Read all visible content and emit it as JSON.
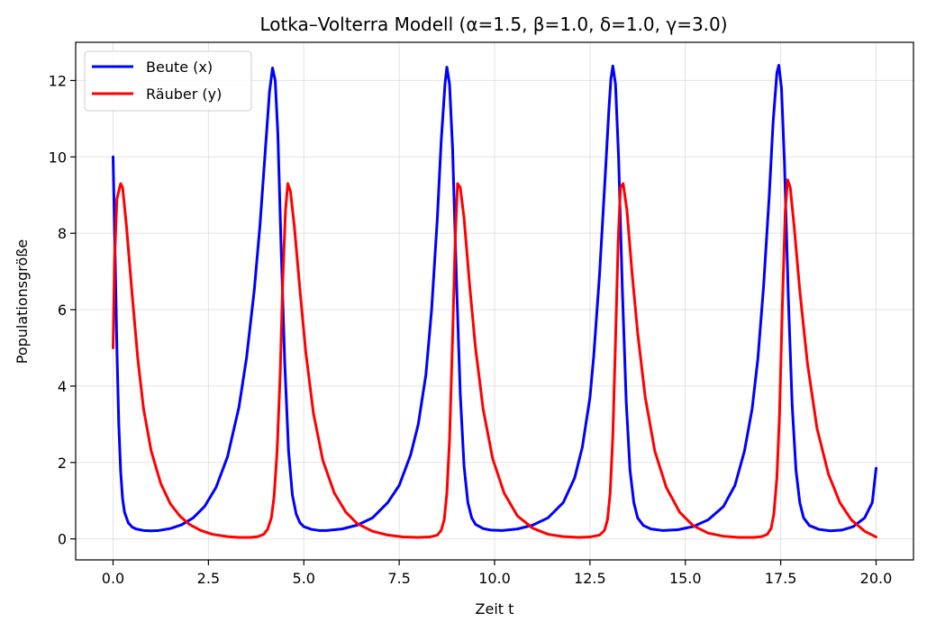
{
  "chart_data": {
    "type": "line",
    "title": "Lotka–Volterra Modell (α=1.5, β=1.0, δ=1.0, γ=3.0)",
    "xlabel": "Zeit t",
    "ylabel": "Populationsgröße",
    "xlim": [
      -0.98,
      20.98
    ],
    "ylim": [
      -0.55,
      13.0
    ],
    "xticks": [
      0.0,
      2.5,
      5.0,
      7.5,
      10.0,
      12.5,
      15.0,
      17.5,
      20.0
    ],
    "xtick_labels": [
      "0.0",
      "2.5",
      "5.0",
      "7.5",
      "10.0",
      "12.5",
      "15.0",
      "17.5",
      "20.0"
    ],
    "yticks": [
      0,
      2,
      4,
      6,
      8,
      10,
      12
    ],
    "ytick_labels": [
      "0",
      "2",
      "4",
      "6",
      "8",
      "10",
      "12"
    ],
    "grid": true,
    "legend_position": "top-left",
    "series": [
      {
        "name": "Beute (x)",
        "color": "#0000ff",
        "points": [
          [
            0.0,
            10.0
          ],
          [
            0.05,
            7.6
          ],
          [
            0.1,
            5.0
          ],
          [
            0.15,
            3.0
          ],
          [
            0.2,
            1.75
          ],
          [
            0.25,
            1.05
          ],
          [
            0.3,
            0.7
          ],
          [
            0.4,
            0.42
          ],
          [
            0.5,
            0.31
          ],
          [
            0.6,
            0.26
          ],
          [
            0.8,
            0.22
          ],
          [
            1.0,
            0.21
          ],
          [
            1.2,
            0.22
          ],
          [
            1.5,
            0.27
          ],
          [
            1.8,
            0.37
          ],
          [
            2.1,
            0.55
          ],
          [
            2.4,
            0.85
          ],
          [
            2.7,
            1.35
          ],
          [
            3.0,
            2.15
          ],
          [
            3.3,
            3.45
          ],
          [
            3.5,
            4.75
          ],
          [
            3.7,
            6.5
          ],
          [
            3.85,
            8.2
          ],
          [
            4.0,
            10.3
          ],
          [
            4.1,
            11.7
          ],
          [
            4.18,
            12.33
          ],
          [
            4.25,
            12.0
          ],
          [
            4.32,
            10.6
          ],
          [
            4.4,
            7.8
          ],
          [
            4.5,
            4.6
          ],
          [
            4.6,
            2.3
          ],
          [
            4.7,
            1.15
          ],
          [
            4.8,
            0.65
          ],
          [
            4.9,
            0.42
          ],
          [
            5.0,
            0.32
          ],
          [
            5.2,
            0.25
          ],
          [
            5.4,
            0.22
          ],
          [
            5.6,
            0.22
          ],
          [
            6.0,
            0.26
          ],
          [
            6.4,
            0.36
          ],
          [
            6.8,
            0.55
          ],
          [
            7.2,
            0.95
          ],
          [
            7.5,
            1.4
          ],
          [
            7.8,
            2.2
          ],
          [
            8.0,
            3.0
          ],
          [
            8.2,
            4.3
          ],
          [
            8.35,
            6.0
          ],
          [
            8.5,
            8.4
          ],
          [
            8.6,
            10.4
          ],
          [
            8.7,
            11.9
          ],
          [
            8.75,
            12.35
          ],
          [
            8.82,
            11.9
          ],
          [
            8.9,
            10.2
          ],
          [
            9.0,
            6.8
          ],
          [
            9.1,
            3.8
          ],
          [
            9.2,
            1.9
          ],
          [
            9.3,
            0.95
          ],
          [
            9.4,
            0.55
          ],
          [
            9.5,
            0.38
          ],
          [
            9.7,
            0.27
          ],
          [
            9.9,
            0.23
          ],
          [
            10.2,
            0.22
          ],
          [
            10.6,
            0.26
          ],
          [
            11.0,
            0.36
          ],
          [
            11.4,
            0.55
          ],
          [
            11.8,
            0.95
          ],
          [
            12.1,
            1.6
          ],
          [
            12.3,
            2.4
          ],
          [
            12.5,
            3.7
          ],
          [
            12.6,
            4.8
          ],
          [
            12.75,
            6.9
          ],
          [
            12.9,
            9.5
          ],
          [
            13.0,
            11.3
          ],
          [
            13.05,
            12.05
          ],
          [
            13.1,
            12.38
          ],
          [
            13.17,
            11.9
          ],
          [
            13.25,
            10.0
          ],
          [
            13.35,
            6.5
          ],
          [
            13.45,
            3.6
          ],
          [
            13.55,
            1.8
          ],
          [
            13.65,
            0.95
          ],
          [
            13.75,
            0.55
          ],
          [
            13.9,
            0.35
          ],
          [
            14.1,
            0.26
          ],
          [
            14.4,
            0.22
          ],
          [
            14.8,
            0.24
          ],
          [
            15.2,
            0.32
          ],
          [
            15.6,
            0.5
          ],
          [
            16.0,
            0.85
          ],
          [
            16.3,
            1.4
          ],
          [
            16.55,
            2.3
          ],
          [
            16.75,
            3.4
          ],
          [
            16.9,
            4.7
          ],
          [
            17.05,
            6.6
          ],
          [
            17.2,
            9.0
          ],
          [
            17.3,
            10.9
          ],
          [
            17.4,
            12.2
          ],
          [
            17.45,
            12.4
          ],
          [
            17.52,
            11.8
          ],
          [
            17.6,
            9.8
          ],
          [
            17.7,
            6.3
          ],
          [
            17.8,
            3.5
          ],
          [
            17.9,
            1.8
          ],
          [
            18.0,
            0.95
          ],
          [
            18.1,
            0.55
          ],
          [
            18.25,
            0.35
          ],
          [
            18.5,
            0.25
          ],
          [
            18.8,
            0.21
          ],
          [
            19.1,
            0.23
          ],
          [
            19.4,
            0.32
          ],
          [
            19.7,
            0.55
          ],
          [
            19.9,
            0.95
          ],
          [
            20.0,
            1.85
          ]
        ]
      },
      {
        "name": "Räuber (y)",
        "color": "#ff0000",
        "points": [
          [
            0.0,
            5.0
          ],
          [
            0.04,
            7.3
          ],
          [
            0.1,
            8.9
          ],
          [
            0.2,
            9.3
          ],
          [
            0.25,
            9.2
          ],
          [
            0.35,
            8.2
          ],
          [
            0.5,
            6.4
          ],
          [
            0.65,
            4.7
          ],
          [
            0.8,
            3.4
          ],
          [
            1.0,
            2.3
          ],
          [
            1.25,
            1.45
          ],
          [
            1.5,
            0.92
          ],
          [
            1.75,
            0.6
          ],
          [
            2.0,
            0.38
          ],
          [
            2.3,
            0.22
          ],
          [
            2.6,
            0.12
          ],
          [
            3.0,
            0.06
          ],
          [
            3.3,
            0.04
          ],
          [
            3.6,
            0.04
          ],
          [
            3.8,
            0.06
          ],
          [
            3.95,
            0.12
          ],
          [
            4.05,
            0.25
          ],
          [
            4.15,
            0.55
          ],
          [
            4.22,
            1.1
          ],
          [
            4.3,
            2.3
          ],
          [
            4.38,
            4.3
          ],
          [
            4.45,
            6.8
          ],
          [
            4.52,
            8.6
          ],
          [
            4.58,
            9.3
          ],
          [
            4.65,
            9.1
          ],
          [
            4.75,
            8.2
          ],
          [
            4.9,
            6.5
          ],
          [
            5.05,
            4.9
          ],
          [
            5.25,
            3.3
          ],
          [
            5.5,
            2.05
          ],
          [
            5.8,
            1.2
          ],
          [
            6.1,
            0.7
          ],
          [
            6.4,
            0.4
          ],
          [
            6.8,
            0.2
          ],
          [
            7.2,
            0.1
          ],
          [
            7.6,
            0.05
          ],
          [
            8.0,
            0.04
          ],
          [
            8.3,
            0.05
          ],
          [
            8.5,
            0.1
          ],
          [
            8.6,
            0.22
          ],
          [
            8.68,
            0.5
          ],
          [
            8.75,
            1.2
          ],
          [
            8.82,
            2.6
          ],
          [
            8.9,
            5.3
          ],
          [
            8.97,
            7.9
          ],
          [
            9.03,
            9.3
          ],
          [
            9.1,
            9.2
          ],
          [
            9.2,
            8.4
          ],
          [
            9.35,
            6.6
          ],
          [
            9.5,
            5.0
          ],
          [
            9.7,
            3.4
          ],
          [
            9.95,
            2.1
          ],
          [
            10.25,
            1.2
          ],
          [
            10.6,
            0.6
          ],
          [
            11.0,
            0.28
          ],
          [
            11.4,
            0.12
          ],
          [
            11.8,
            0.06
          ],
          [
            12.2,
            0.04
          ],
          [
            12.5,
            0.05
          ],
          [
            12.75,
            0.1
          ],
          [
            12.88,
            0.22
          ],
          [
            12.96,
            0.5
          ],
          [
            13.03,
            1.2
          ],
          [
            13.1,
            2.7
          ],
          [
            13.17,
            5.2
          ],
          [
            13.24,
            7.8
          ],
          [
            13.3,
            9.2
          ],
          [
            13.37,
            9.3
          ],
          [
            13.47,
            8.6
          ],
          [
            13.6,
            7.0
          ],
          [
            13.75,
            5.4
          ],
          [
            13.95,
            3.7
          ],
          [
            14.2,
            2.3
          ],
          [
            14.5,
            1.35
          ],
          [
            14.85,
            0.7
          ],
          [
            15.2,
            0.35
          ],
          [
            15.6,
            0.15
          ],
          [
            16.0,
            0.07
          ],
          [
            16.4,
            0.04
          ],
          [
            16.8,
            0.04
          ],
          [
            17.0,
            0.06
          ],
          [
            17.15,
            0.12
          ],
          [
            17.25,
            0.28
          ],
          [
            17.32,
            0.65
          ],
          [
            17.4,
            1.6
          ],
          [
            17.47,
            3.3
          ],
          [
            17.54,
            6.0
          ],
          [
            17.62,
            8.6
          ],
          [
            17.68,
            9.4
          ],
          [
            17.75,
            9.2
          ],
          [
            17.85,
            8.2
          ],
          [
            18.0,
            6.5
          ],
          [
            18.2,
            4.6
          ],
          [
            18.45,
            2.9
          ],
          [
            18.75,
            1.7
          ],
          [
            19.05,
            0.95
          ],
          [
            19.35,
            0.5
          ],
          [
            19.7,
            0.2
          ],
          [
            20.0,
            0.05
          ]
        ]
      }
    ]
  }
}
